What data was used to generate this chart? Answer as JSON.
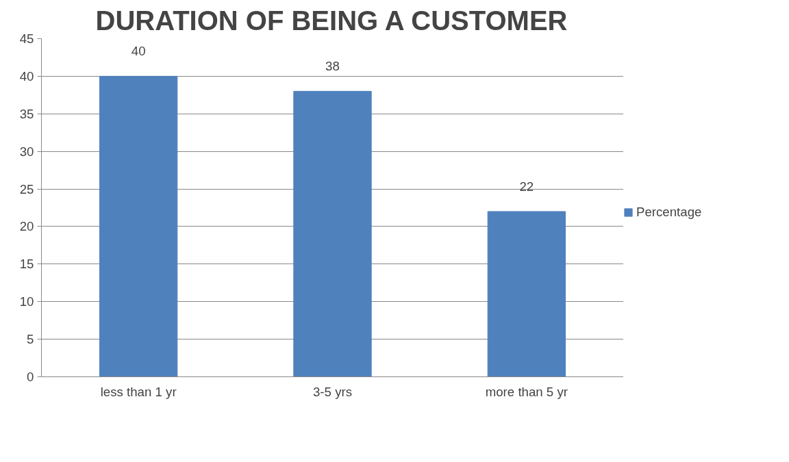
{
  "chart_data": {
    "type": "bar",
    "title": "DURATION OF BEING A CUSTOMER",
    "categories": [
      "less than 1 yr",
      "3-5 yrs",
      "more than 5 yr"
    ],
    "series": [
      {
        "name": "Percentage",
        "color": "#4f81bd",
        "values": [
          40,
          38,
          22
        ]
      }
    ],
    "ylim": [
      0,
      45
    ],
    "yticks": [
      0,
      5,
      10,
      15,
      20,
      25,
      30,
      35,
      40,
      45
    ],
    "grid": "y",
    "legend": "right",
    "data_labels": true
  }
}
